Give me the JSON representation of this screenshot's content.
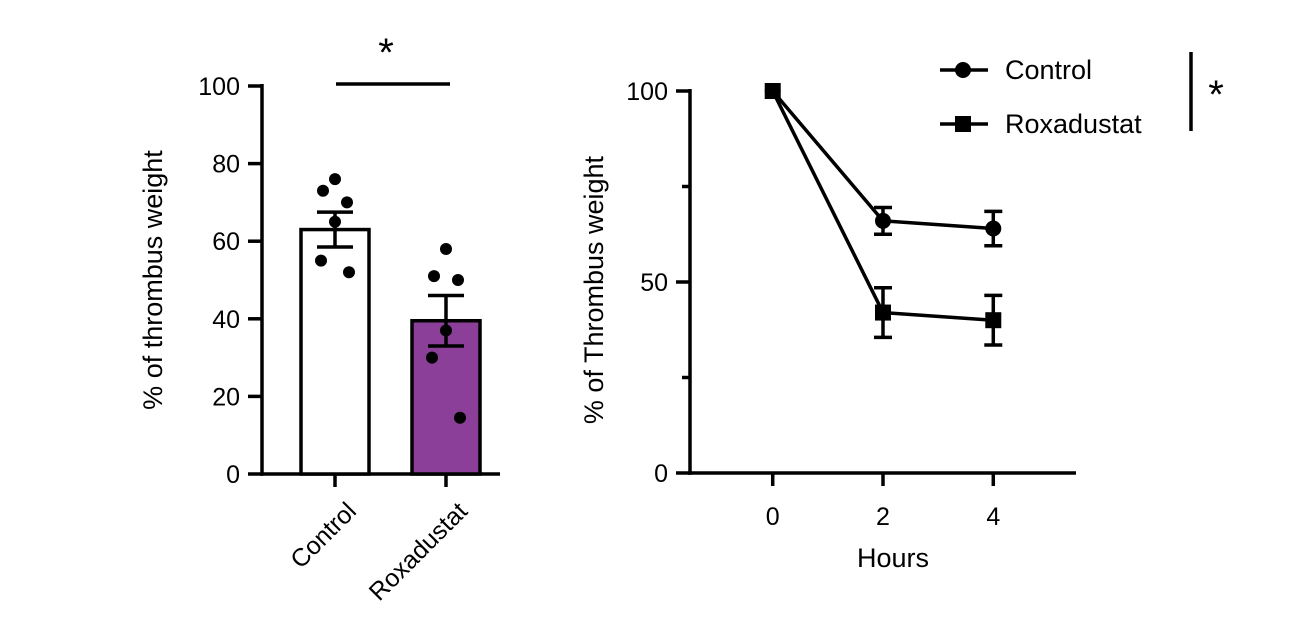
{
  "chart_data": [
    {
      "type": "bar",
      "categories": [
        "Control",
        "Roxadustat"
      ],
      "values": [
        63,
        39.5
      ],
      "errors": [
        4.5,
        6.5
      ],
      "points": [
        [
          76,
          73,
          70,
          65,
          55,
          52
        ],
        [
          58,
          51,
          50,
          37,
          30,
          14.5
        ]
      ],
      "bar_colors": [
        "#ffffff",
        "#8b3f98"
      ],
      "ylabel": "% of thrombus weight",
      "ylim": [
        0,
        100
      ],
      "yticks": [
        0,
        20,
        40,
        60,
        80,
        100
      ],
      "significance": "*",
      "grid": false
    },
    {
      "type": "line",
      "x": [
        0,
        2,
        4
      ],
      "xticks": [
        0,
        2,
        4
      ],
      "xlim": [
        -1.5,
        5.5
      ],
      "ylim": [
        0,
        100
      ],
      "yticks": [
        0,
        50,
        100
      ],
      "xlabel": "Hours",
      "ylabel": "% of Thrombus weight",
      "series": [
        {
          "name": "Control",
          "marker": "circle",
          "values": [
            100,
            66,
            64
          ],
          "errors": [
            0,
            3.5,
            4.5
          ]
        },
        {
          "name": "Roxadustat",
          "marker": "square",
          "values": [
            100,
            42,
            40
          ],
          "errors": [
            0,
            6.5,
            6.5
          ]
        }
      ],
      "legend": "top-right",
      "significance": "*",
      "grid": false
    }
  ]
}
